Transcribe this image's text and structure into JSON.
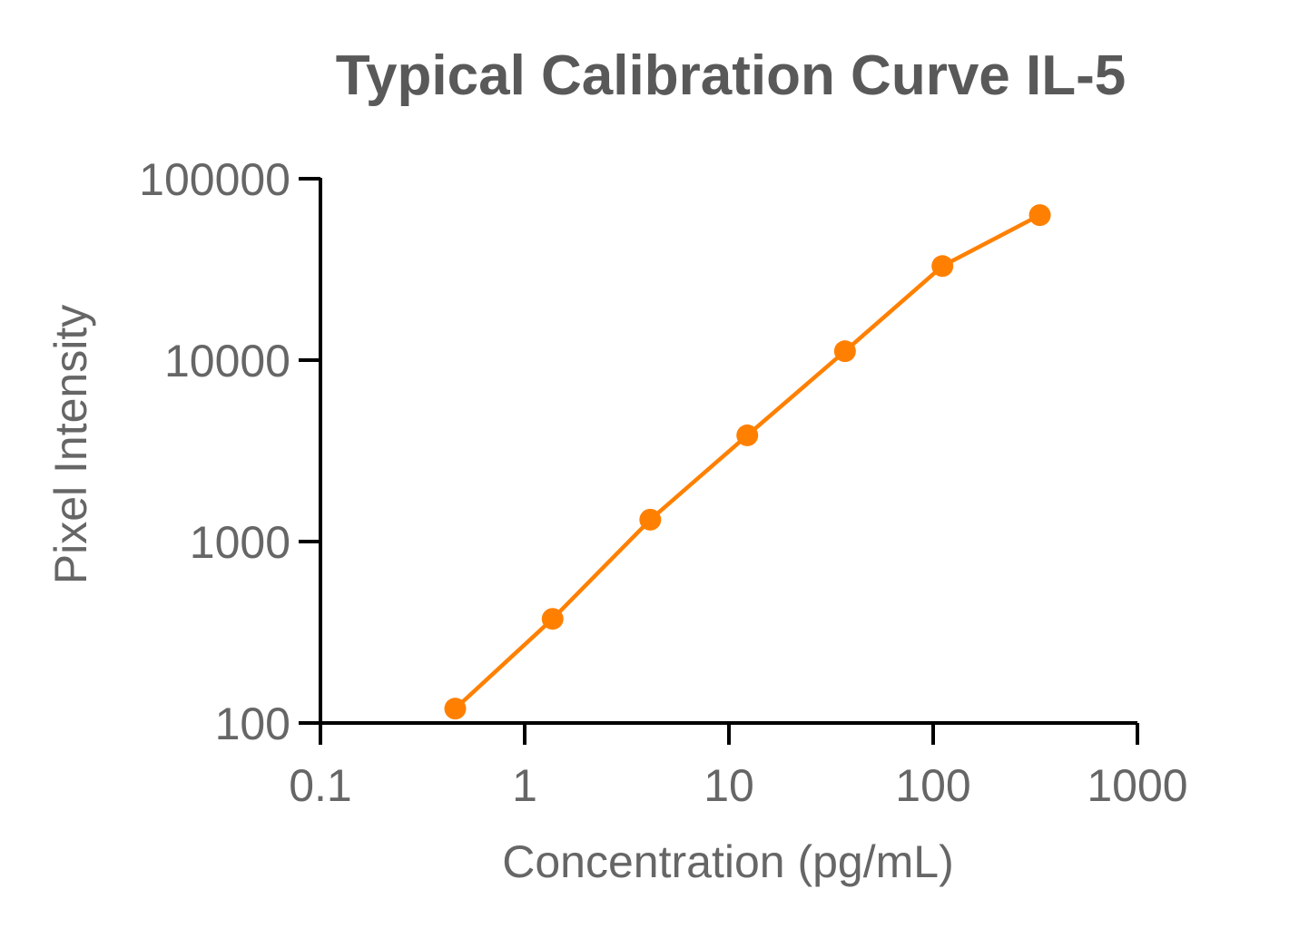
{
  "chart_data": {
    "type": "line",
    "title": "Typical Calibration Curve IL-5",
    "xlabel": "Concentration (pg/mL)",
    "ylabel": "Pixel Intensity",
    "x_scale": "log",
    "y_scale": "log",
    "xlim": [
      0.1,
      1000
    ],
    "ylim": [
      100,
      100000
    ],
    "x_ticks": [
      "0.1",
      "1",
      "10",
      "100",
      "1000"
    ],
    "y_ticks": [
      "100",
      "1000",
      "10000",
      "100000"
    ],
    "grid": false,
    "legend": "none",
    "series": [
      {
        "color": "#FF8000",
        "x": [
          0.457,
          1.37,
          4.12,
          12.3,
          37.0,
          111,
          333
        ],
        "y": [
          120,
          375,
          1320,
          3850,
          11200,
          33000,
          63000
        ]
      }
    ]
  }
}
